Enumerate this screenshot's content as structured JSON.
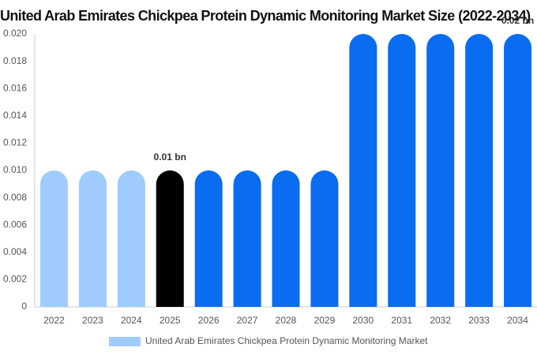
{
  "chart_data": {
    "type": "bar",
    "title": "United Arab Emirates Chickpea Protein Dynamic Monitoring Market Size (2022-2034)",
    "categories": [
      "2022",
      "2023",
      "2024",
      "2025",
      "2026",
      "2027",
      "2028",
      "2029",
      "2030",
      "2031",
      "2032",
      "2033",
      "2034"
    ],
    "series": [
      {
        "name": "United Arab Emirates Chickpea Protein Dynamic Monitoring Market",
        "color": "#a0cbff",
        "values": [
          0.01,
          0.01,
          0.01,
          0.01,
          0.01,
          0.01,
          0.01,
          0.01,
          0.02,
          0.02,
          0.02,
          0.02,
          0.02
        ],
        "value_labels": [
          null,
          null,
          null,
          "0.01 bn",
          null,
          null,
          null,
          null,
          null,
          null,
          null,
          null,
          "0.02 bn"
        ],
        "bar_colors": [
          "#a0cbff",
          "#a0cbff",
          "#a0cbff",
          "#000000",
          "#0a6cf0",
          "#0a6cf0",
          "#0a6cf0",
          "#0a6cf0",
          "#0a6cf0",
          "#0a6cf0",
          "#0a6cf0",
          "#0a6cf0",
          "#0a6cf0"
        ]
      }
    ],
    "ylim": [
      0,
      0.02
    ],
    "yticks": [
      0,
      0.002,
      0.004,
      0.006,
      0.008,
      {
        "value": 0.01,
        "label": "0.010"
      },
      0.012,
      0.014,
      0.016,
      0.018,
      {
        "value": 0.02,
        "label": "0.020"
      }
    ],
    "grid": false
  }
}
